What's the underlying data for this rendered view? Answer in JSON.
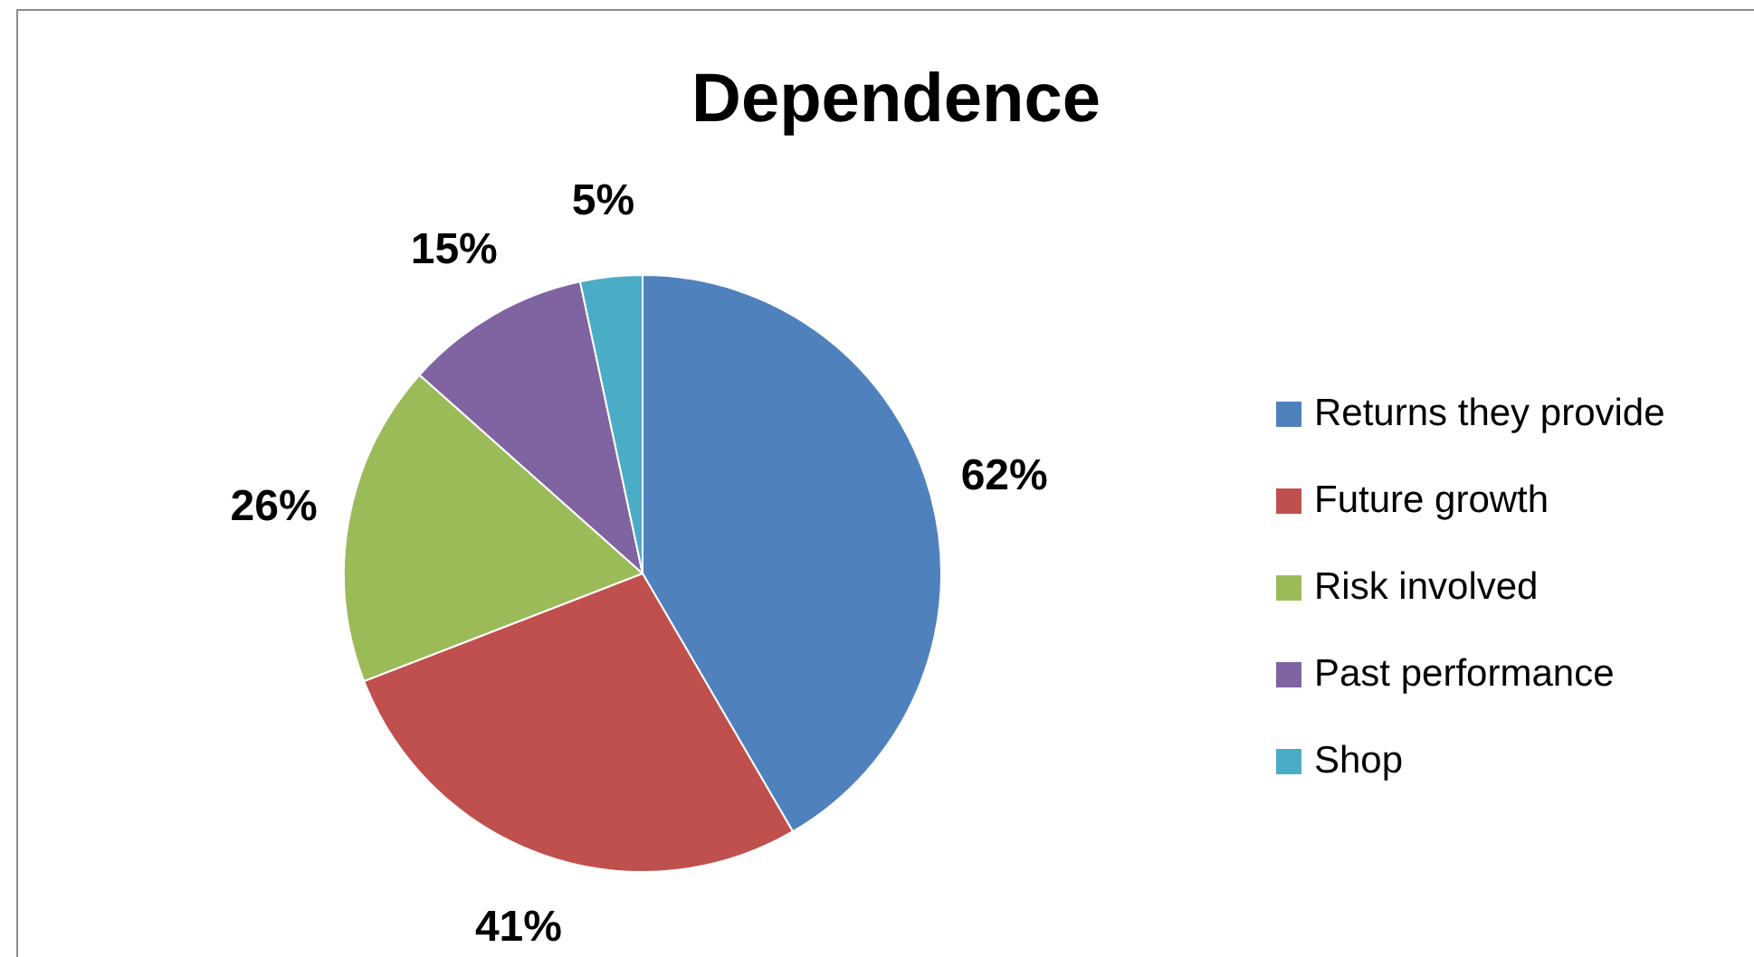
{
  "chart_data": {
    "type": "pie",
    "title": "Dependence",
    "categories": [
      "Returns they provide",
      "Future growth",
      "Risk involved",
      "Past performance",
      "Shop"
    ],
    "values": [
      62,
      41,
      26,
      15,
      5
    ],
    "value_labels": [
      "62%",
      "41%",
      "26%",
      "15%",
      "5%"
    ],
    "colors": [
      "#4f81bd",
      "#c0504d",
      "#9bbb59",
      "#8064a2",
      "#4bacc6"
    ],
    "legend": "right"
  }
}
